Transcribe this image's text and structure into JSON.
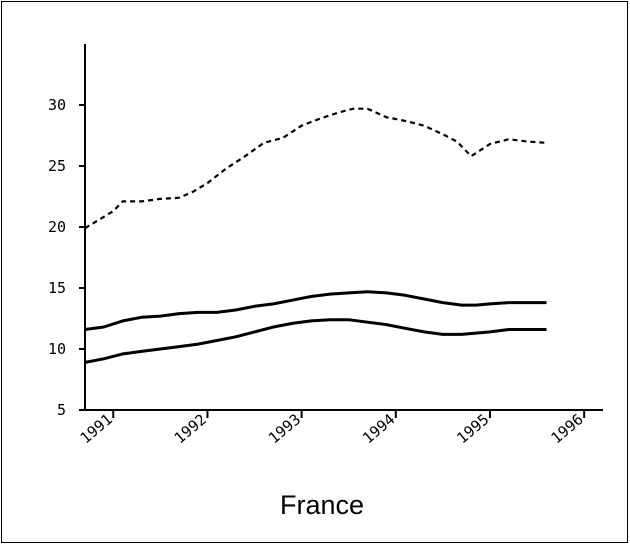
{
  "chart_data": {
    "type": "line",
    "title": "France",
    "xlabel": "",
    "ylabel": "",
    "ylim": [
      5,
      35
    ],
    "xlim": [
      1990.7,
      1996.2
    ],
    "yticks": [
      5,
      10,
      15,
      20,
      25,
      30
    ],
    "y_tick_labels": [
      "5",
      "10",
      "15",
      "20",
      "25",
      "30"
    ],
    "xticks": [
      1991,
      1992,
      1993,
      1994,
      1995,
      1996
    ],
    "x_tick_labels": [
      "1991",
      "1992",
      "1993",
      "1994",
      "1995",
      "1996"
    ],
    "grid": false,
    "legend": "none",
    "series": [
      {
        "style": "dashed",
        "x": [
          1990.7,
          1990.85,
          1991.0,
          1991.1,
          1991.3,
          1991.5,
          1991.7,
          1991.85,
          1992.0,
          1992.2,
          1992.4,
          1992.6,
          1992.8,
          1993.0,
          1993.2,
          1993.4,
          1993.55,
          1993.7,
          1993.9,
          1994.1,
          1994.3,
          1994.5,
          1994.65,
          1994.8,
          1995.0,
          1995.2,
          1995.4,
          1995.6
        ],
        "values": [
          19.9,
          20.6,
          21.3,
          22.1,
          22.1,
          22.3,
          22.4,
          22.9,
          23.6,
          24.8,
          25.8,
          26.9,
          27.3,
          28.3,
          28.9,
          29.4,
          29.7,
          29.7,
          29.0,
          28.7,
          28.3,
          27.6,
          27.0,
          25.8,
          26.8,
          27.2,
          27.0,
          26.9
        ]
      },
      {
        "style": "solid",
        "x": [
          1990.7,
          1990.9,
          1991.1,
          1991.3,
          1991.5,
          1991.7,
          1991.9,
          1992.1,
          1992.3,
          1992.5,
          1992.7,
          1992.9,
          1993.1,
          1993.3,
          1993.5,
          1993.7,
          1993.9,
          1994.1,
          1994.3,
          1994.5,
          1994.7,
          1994.85,
          1995.0,
          1995.2,
          1995.4,
          1995.6
        ],
        "values": [
          11.6,
          11.8,
          12.3,
          12.6,
          12.7,
          12.9,
          13.0,
          13.0,
          13.2,
          13.5,
          13.7,
          14.0,
          14.3,
          14.5,
          14.6,
          14.7,
          14.6,
          14.4,
          14.1,
          13.8,
          13.6,
          13.6,
          13.7,
          13.8,
          13.8,
          13.8
        ]
      },
      {
        "style": "solid",
        "x": [
          1990.7,
          1990.9,
          1991.1,
          1991.3,
          1991.5,
          1991.7,
          1991.9,
          1992.1,
          1992.3,
          1992.5,
          1992.7,
          1992.9,
          1993.1,
          1993.3,
          1993.5,
          1993.7,
          1993.9,
          1994.1,
          1994.3,
          1994.5,
          1994.7,
          1994.85,
          1995.0,
          1995.2,
          1995.4,
          1995.6
        ],
        "values": [
          8.9,
          9.2,
          9.6,
          9.8,
          10.0,
          10.2,
          10.4,
          10.7,
          11.0,
          11.4,
          11.8,
          12.1,
          12.3,
          12.4,
          12.4,
          12.2,
          12.0,
          11.7,
          11.4,
          11.2,
          11.2,
          11.3,
          11.4,
          11.6,
          11.6,
          11.6
        ]
      }
    ]
  },
  "colors": {
    "ink": "#000000",
    "background": "#ffffff"
  }
}
